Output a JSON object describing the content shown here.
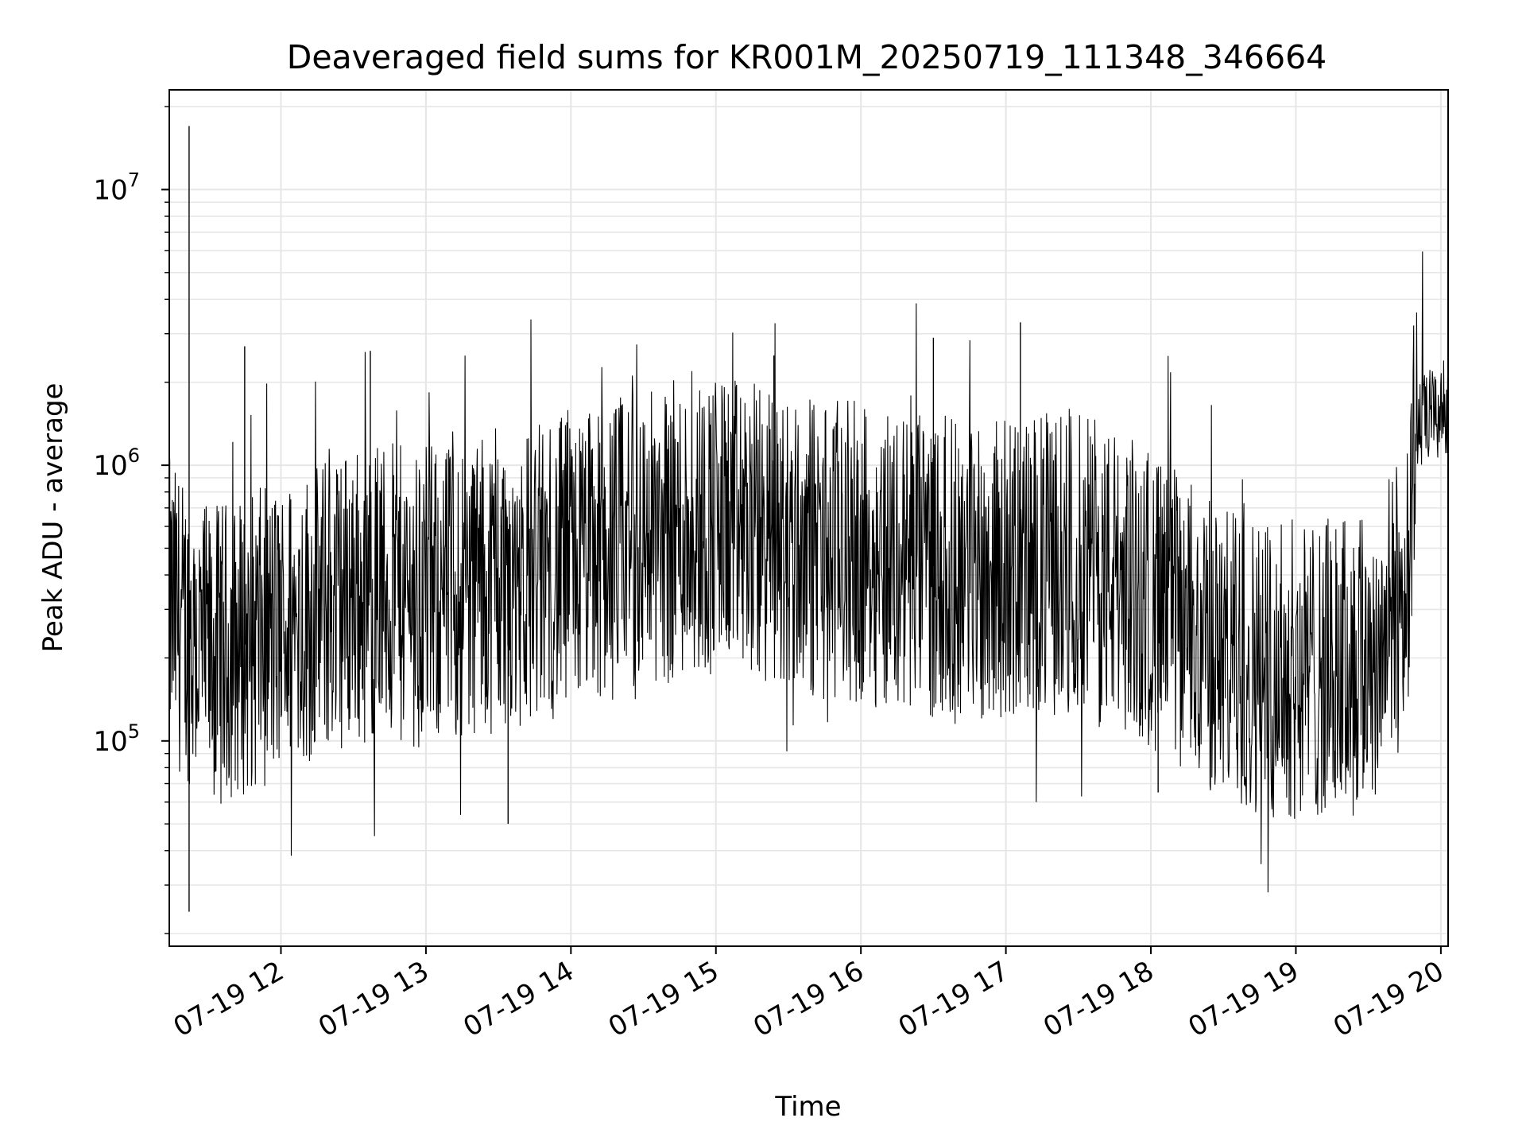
{
  "chart_data": {
    "type": "line",
    "title": "Deaveraged field sums for KR001M_20250719_111348_346664",
    "xlabel": "Time",
    "ylabel": "Peak ADU - average",
    "xscale": "time",
    "yscale": "log",
    "xlim": [
      "2025-07-19T11:13:48",
      "2025-07-19T20:03:00"
    ],
    "ylim": [
      18000,
      23000000
    ],
    "grid": true,
    "x_ticks": [
      "07-19 12",
      "07-19 13",
      "07-19 14",
      "07-19 15",
      "07-19 16",
      "07-19 17",
      "07-19 18",
      "07-19 19",
      "07-19 20"
    ],
    "y_ticks": [
      {
        "value": 100000,
        "base": "10",
        "exp": "5"
      },
      {
        "value": 1000000,
        "base": "10",
        "exp": "6"
      },
      {
        "value": 10000000,
        "base": "10",
        "exp": "7"
      }
    ],
    "line_color": "#000000",
    "x": [
      "2025-07-19T11:14",
      "2025-07-19T11:30",
      "2025-07-19T12:00",
      "2025-07-19T12:30",
      "2025-07-19T13:00",
      "2025-07-19T13:30",
      "2025-07-19T14:00",
      "2025-07-19T14:30",
      "2025-07-19T15:00",
      "2025-07-19T15:30",
      "2025-07-19T16:00",
      "2025-07-19T16:30",
      "2025-07-19T17:00",
      "2025-07-19T17:30",
      "2025-07-19T18:00",
      "2025-07-19T18:30",
      "2025-07-19T19:00",
      "2025-07-19T19:30",
      "2025-07-19T19:45",
      "2025-07-19T19:50",
      "2025-07-19T20:02"
    ],
    "values": [
      300000,
      200000,
      250000,
      350000,
      330000,
      380000,
      430000,
      550000,
      620000,
      520000,
      480000,
      430000,
      420000,
      450000,
      330000,
      200000,
      180000,
      190000,
      330000,
      1400000,
      1600000
    ],
    "spikes": [
      {
        "x": "2025-07-19T11:22",
        "y": 17000000
      },
      {
        "x": "2025-07-19T11:22",
        "y": 24000
      },
      {
        "x": "2025-07-19T11:45",
        "y": 2700000
      },
      {
        "x": "2025-07-19T12:37",
        "y": 2600000
      },
      {
        "x": "2025-07-19T13:34",
        "y": 50000
      },
      {
        "x": "2025-07-19T15:24",
        "y": 2500000
      },
      {
        "x": "2025-07-19T16:30",
        "y": 2900000
      },
      {
        "x": "2025-07-19T17:06",
        "y": 3300000
      },
      {
        "x": "2025-07-19T18:03",
        "y": 65000
      },
      {
        "x": "2025-07-19T20:03",
        "y": 3200000
      }
    ]
  }
}
